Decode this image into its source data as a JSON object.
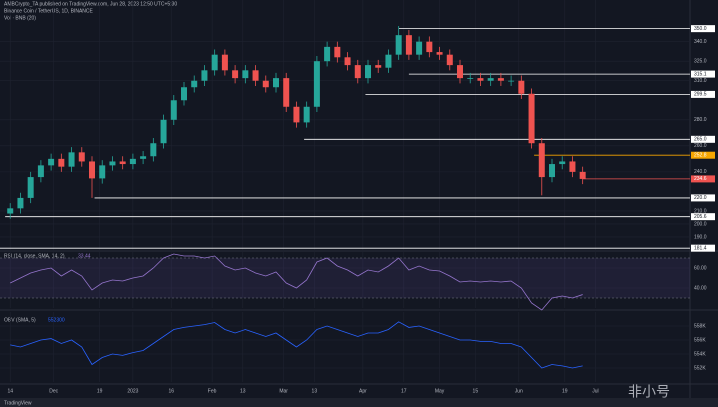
{
  "header": "AMBCrypto_TA published on TradingView.com, Jun 28, 2023 12:50 UTC+5:30",
  "footer": "TradingView",
  "watermark": "非小号",
  "chart_data": [
    {
      "type": "candlestick",
      "title": "Binance Coin / TetherUS, 1D, BINANCE",
      "subtitle": "Vol · BNB (20)",
      "up_color": "#26a69a",
      "down_color": "#ef5350",
      "x": [
        0,
        4,
        8,
        12,
        16,
        20,
        24,
        28,
        32,
        36,
        40,
        44,
        48,
        52,
        56,
        60,
        64,
        68,
        72,
        76,
        80,
        84,
        88,
        92,
        96,
        100,
        104,
        108,
        112,
        116,
        120,
        124,
        128,
        132,
        136,
        140,
        144,
        148,
        152,
        156,
        160,
        164,
        168,
        172,
        176,
        180,
        184,
        188,
        192,
        196,
        200,
        204,
        208,
        212,
        216,
        220,
        224
      ],
      "open": [
        208,
        212,
        220,
        236,
        245,
        250,
        244,
        255,
        248,
        235,
        245,
        248,
        246,
        250,
        252,
        262,
        280,
        295,
        305,
        310,
        318,
        330,
        318,
        312,
        318,
        310,
        305,
        312,
        290,
        278,
        290,
        325,
        336,
        328,
        322,
        312,
        322,
        320,
        330,
        345,
        330,
        340,
        332,
        330,
        322,
        312,
        312,
        310,
        312,
        310,
        310,
        300,
        262,
        236,
        246,
        248,
        240
      ],
      "high": [
        216,
        224,
        240,
        249,
        254,
        254,
        259,
        259,
        252,
        249,
        252,
        252,
        254,
        256,
        266,
        284,
        299,
        309,
        314,
        322,
        334,
        334,
        322,
        322,
        322,
        314,
        316,
        316,
        294,
        294,
        329,
        340,
        340,
        332,
        326,
        326,
        326,
        334,
        352,
        349,
        344,
        344,
        336,
        334,
        326,
        316,
        316,
        316,
        316,
        314,
        314,
        304,
        266,
        250,
        252,
        252,
        244
      ],
      "low": [
        204,
        208,
        216,
        232,
        241,
        240,
        240,
        244,
        220,
        231,
        241,
        242,
        242,
        246,
        248,
        258,
        276,
        291,
        301,
        306,
        314,
        314,
        308,
        308,
        306,
        301,
        301,
        286,
        274,
        274,
        286,
        321,
        324,
        318,
        308,
        308,
        316,
        316,
        326,
        326,
        326,
        328,
        326,
        318,
        308,
        308,
        306,
        306,
        306,
        306,
        296,
        258,
        222,
        232,
        242,
        236,
        230.6
      ],
      "close": [
        212,
        220,
        236,
        245,
        250,
        244,
        255,
        248,
        235,
        245,
        248,
        246,
        250,
        252,
        262,
        280,
        295,
        305,
        310,
        318,
        330,
        318,
        312,
        318,
        310,
        305,
        312,
        290,
        278,
        290,
        325,
        336,
        328,
        322,
        312,
        322,
        320,
        330,
        345,
        330,
        340,
        332,
        330,
        322,
        312,
        312,
        310,
        312,
        310,
        310,
        300,
        262,
        236,
        246,
        248,
        240,
        234.6
      ],
      "xlim": [
        -4,
        266
      ],
      "ylim": [
        180,
        372
      ],
      "xticks": [
        {
          "value": 0,
          "label": "14"
        },
        {
          "value": 17,
          "label": "Dec"
        },
        {
          "value": 35,
          "label": "19"
        },
        {
          "value": 48,
          "label": "2023"
        },
        {
          "value": 63,
          "label": "16"
        },
        {
          "value": 79,
          "label": "Feb"
        },
        {
          "value": 91,
          "label": "13"
        },
        {
          "value": 107,
          "label": "Mar"
        },
        {
          "value": 119,
          "label": "13"
        },
        {
          "value": 138,
          "label": "Apr"
        },
        {
          "value": 154,
          "label": "17"
        },
        {
          "value": 168,
          "label": "May"
        },
        {
          "value": 182,
          "label": "15"
        },
        {
          "value": 199,
          "label": "Jun"
        },
        {
          "value": 217,
          "label": "19"
        },
        {
          "value": 229,
          "label": "Jul"
        }
      ],
      "yticks": [
        {
          "value": 340,
          "label": "340.0"
        },
        {
          "value": 325,
          "label": "325.0"
        },
        {
          "value": 310,
          "label": "310.0"
        },
        {
          "value": 280,
          "label": "280.0"
        },
        {
          "value": 260,
          "label": "260.0"
        },
        {
          "value": 240,
          "label": "240.0"
        },
        {
          "value": 210,
          "label": "210.0"
        },
        {
          "value": 200,
          "label": "200.0"
        },
        {
          "value": 190,
          "label": "190.0"
        }
      ],
      "levels": [
        {
          "value": 350,
          "label": "350.0",
          "start": 152,
          "color": "#ffffff"
        },
        {
          "value": 315.1,
          "label": "315.1",
          "start": 156,
          "color": "#ffffff"
        },
        {
          "value": 299.5,
          "label": "299.5",
          "start": 139,
          "color": "#ffffff"
        },
        {
          "value": 265,
          "label": "265.0",
          "start": 115,
          "color": "#ffffff"
        },
        {
          "value": 252.8,
          "label": "252.8",
          "start": 205,
          "color": "#f7a600"
        },
        {
          "value": 234.6,
          "label": "234.6",
          "start": 224,
          "color": "#ef5350"
        },
        {
          "value": 220,
          "label": "220.0",
          "start": 33,
          "color": "#ffffff"
        },
        {
          "value": 205.6,
          "label": "205.6",
          "start": -2,
          "color": "#ffffff"
        },
        {
          "value": 181.4,
          "label": "181.4",
          "start": -4,
          "color": "#ffffff"
        }
      ],
      "grid": true
    },
    {
      "type": "line",
      "title": "RSI (14, close, SMA, 14, 2)",
      "color": "#9575cd",
      "x": [
        0,
        4,
        8,
        12,
        16,
        20,
        24,
        28,
        32,
        36,
        40,
        44,
        48,
        52,
        56,
        60,
        64,
        68,
        72,
        76,
        80,
        84,
        88,
        92,
        96,
        100,
        104,
        108,
        112,
        116,
        120,
        124,
        128,
        132,
        136,
        140,
        144,
        148,
        152,
        156,
        160,
        164,
        168,
        172,
        176,
        180,
        184,
        188,
        192,
        196,
        200,
        204,
        208,
        212,
        216,
        220,
        224
      ],
      "values": [
        45,
        50,
        55,
        58,
        60,
        52,
        58,
        52,
        38,
        45,
        48,
        47,
        50,
        52,
        60,
        70,
        74,
        72,
        72,
        70,
        72,
        62,
        58,
        60,
        55,
        52,
        56,
        45,
        40,
        48,
        66,
        70,
        62,
        58,
        52,
        58,
        56,
        62,
        70,
        58,
        62,
        58,
        57,
        52,
        46,
        47,
        46,
        47,
        46,
        47,
        40,
        25,
        18,
        30,
        32,
        30,
        33.44
      ],
      "xlim": [
        -4,
        266
      ],
      "ylim": [
        20,
        76
      ],
      "yticks": [
        {
          "value": 60,
          "label": "60.00"
        },
        {
          "value": 40,
          "label": "40.00"
        }
      ],
      "band": [
        30,
        70
      ]
    },
    {
      "type": "line",
      "title": "OBV (SMA, 5)",
      "color": "#2962ff",
      "x": [
        0,
        4,
        8,
        12,
        16,
        20,
        24,
        28,
        32,
        36,
        40,
        44,
        48,
        52,
        56,
        60,
        64,
        68,
        72,
        76,
        80,
        84,
        88,
        92,
        96,
        100,
        104,
        108,
        112,
        116,
        120,
        124,
        128,
        132,
        136,
        140,
        144,
        148,
        152,
        156,
        160,
        164,
        168,
        172,
        176,
        180,
        184,
        188,
        192,
        196,
        200,
        204,
        208,
        212,
        216,
        220,
        224
      ],
      "values": [
        555300,
        555000,
        555500,
        556000,
        556200,
        555500,
        556000,
        555000,
        552500,
        553500,
        554000,
        553800,
        554200,
        554500,
        555500,
        556500,
        557500,
        557800,
        558000,
        558200,
        558500,
        557500,
        557000,
        557500,
        557000,
        556500,
        557000,
        556000,
        555000,
        556000,
        557500,
        558000,
        557500,
        557000,
        556500,
        557000,
        557000,
        557500,
        558600,
        557800,
        558000,
        557500,
        557000,
        556500,
        556000,
        556000,
        555800,
        555800,
        555500,
        555500,
        555000,
        553500,
        552000,
        552500,
        552300,
        552000,
        552300
      ],
      "xlim": [
        -4,
        266
      ],
      "ylim": [
        550000,
        560000
      ],
      "yticks": [
        {
          "value": 558000,
          "label": "558K"
        },
        {
          "value": 556000,
          "label": "556K"
        },
        {
          "value": 554000,
          "label": "554K"
        },
        {
          "value": 552000,
          "label": "552K"
        }
      ]
    }
  ]
}
